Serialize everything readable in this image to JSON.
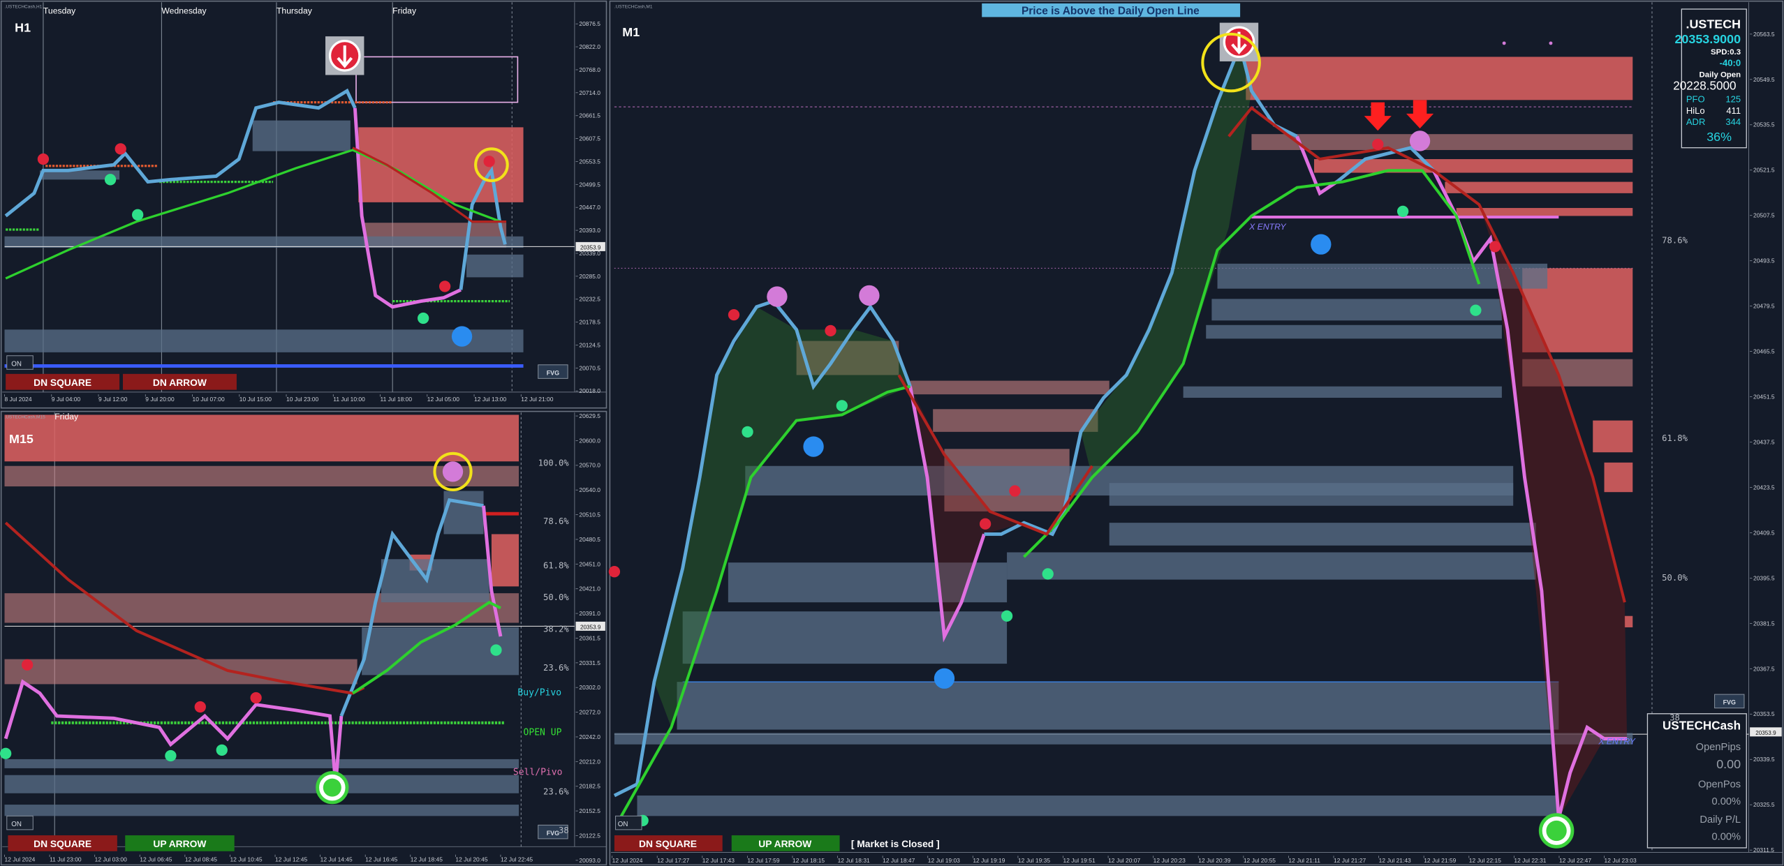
{
  "h1": {
    "symbol": ".USTECHCash,H1",
    "label": "H1",
    "days": [
      "Tuesday",
      "Wednesday",
      "Thursday",
      "Friday"
    ],
    "price_axis": [
      "20876.5",
      "20822.0",
      "20768.0",
      "20714.0",
      "20661.5",
      "20607.5",
      "20553.5",
      "20499.5",
      "20447.0",
      "20393.0",
      "20339.0",
      "20285.0",
      "20232.5",
      "20178.5",
      "20124.5",
      "20070.5",
      "20018.0"
    ],
    "time_axis": [
      "8 Jul 2024",
      "9 Jul 04:00",
      "9 Jul 12:00",
      "9 Jul 20:00",
      "10 Jul 07:00",
      "10 Jul 15:00",
      "10 Jul 23:00",
      "11 Jul 10:00",
      "11 Jul 18:00",
      "12 Jul 05:00",
      "12 Jul 13:00",
      "12 Jul 21:00"
    ],
    "current_price": "20353.9",
    "buttons": [
      "DN SQUARE",
      "DN ARROW"
    ],
    "toggle": "ON",
    "badge": "FVG"
  },
  "m15": {
    "symbol": ".USTECHCash,M15",
    "label": "M15",
    "days": [
      "Friday"
    ],
    "price_axis": [
      "20629.5",
      "20600.0",
      "20570.0",
      "20540.0",
      "20510.5",
      "20480.5",
      "20451.0",
      "20421.0",
      "20391.0",
      "20361.5",
      "20331.5",
      "20302.0",
      "20272.0",
      "20242.0",
      "20212.0",
      "20182.5",
      "20152.5",
      "20122.5",
      "20093.0"
    ],
    "time_axis": [
      "12 Jul 2024",
      "11 Jul 23:00",
      "12 Jul 03:00",
      "12 Jul 06:45",
      "12 Jul 08:45",
      "12 Jul 10:45",
      "12 Jul 12:45",
      "12 Jul 14:45",
      "12 Jul 16:45",
      "12 Jul 18:45",
      "12 Jul 20:45",
      "12 Jul 22:45"
    ],
    "current_price": "20353.9",
    "fib_levels": [
      "100.0%",
      "78.6%",
      "61.8%",
      "50.0%",
      "38.2%",
      "23.6%",
      "23.6%",
      "38"
    ],
    "pivot_labels": [
      "Buy/Pivo",
      "OPEN UP",
      "Sell/Pivo"
    ],
    "buttons": [
      "DN SQUARE",
      "UP ARROW"
    ],
    "toggle": "ON",
    "badge": "FVG"
  },
  "m1": {
    "symbol": ".USTECHCash,M1",
    "label": "M1",
    "banner": "Price is Above the Daily Open Line",
    "price_axis": [
      "20563.5",
      "20549.5",
      "20535.5",
      "20521.5",
      "20507.5",
      "20493.5",
      "20479.5",
      "20465.5",
      "20451.5",
      "20437.5",
      "20423.5",
      "20409.5",
      "20395.5",
      "20381.5",
      "20367.5",
      "20353.5",
      "20339.5",
      "20325.5",
      "20311.5"
    ],
    "time_axis": [
      "12 Jul 2024",
      "12 Jul 17:27",
      "12 Jul 17:43",
      "12 Jul 17:59",
      "12 Jul 18:15",
      "12 Jul 18:31",
      "12 Jul 18:47",
      "12 Jul 19:03",
      "12 Jul 19:19",
      "12 Jul 19:35",
      "12 Jul 19:51",
      "12 Jul 20:07",
      "12 Jul 20:23",
      "12 Jul 20:39",
      "12 Jul 20:55",
      "12 Jul 21:11",
      "12 Jul 21:27",
      "12 Jul 21:43",
      "12 Jul 21:59",
      "12 Jul 22:15",
      "12 Jul 22:31",
      "12 Jul 22:47",
      "12 Jul 23:03"
    ],
    "current_price": "20353.9",
    "fib_levels": [
      "78.6%",
      "61.8%",
      "50.0%",
      "38"
    ],
    "entry_labels": [
      "X ENTRY",
      "X ENTRY"
    ],
    "buttons": [
      "DN SQUARE",
      "UP ARROW"
    ],
    "status": "[ Market is Closed ]",
    "toggle": "ON",
    "badge": "FVG",
    "info": {
      "symbol": ".USTECH",
      "price": "20353.9000",
      "spread": "SPD:0.3",
      "change": "-40:0",
      "daily_open_label": "Daily Open",
      "daily_open": "20228.5000",
      "pfo_label": "PFO",
      "pfo": "125",
      "hilo_label": "HiLo",
      "hilo": "411",
      "adr_label": "ADR",
      "adr": "344",
      "adr_pct": "36%"
    },
    "account": {
      "symbol": "USTECHCash",
      "open_pips_label": "OpenPips",
      "open_pips": "0.00",
      "open_pos_label": "OpenPos",
      "open_pos": "0.00%",
      "daily_pl_label": "Daily P/L",
      "daily_pl": "0.00%"
    }
  }
}
